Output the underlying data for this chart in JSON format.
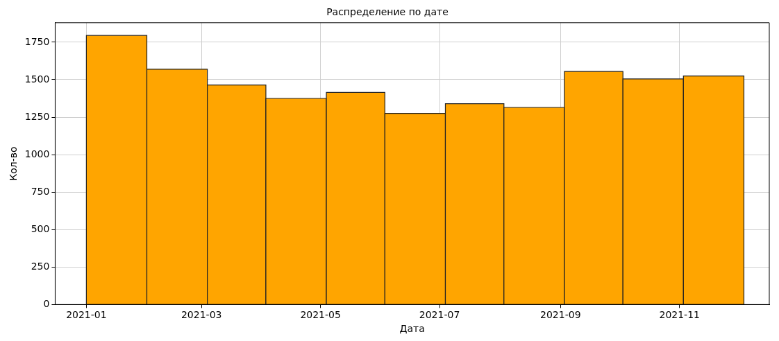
{
  "chart_data": {
    "type": "histogram",
    "title": "Распределение по дате",
    "xlabel": "Дата",
    "ylabel": "Кол-во",
    "bins": [
      "2021-01-01",
      "2021-02-01",
      "2021-03-04",
      "2021-04-03",
      "2021-05-04",
      "2021-06-03",
      "2021-07-04",
      "2021-08-03",
      "2021-09-03",
      "2021-10-03",
      "2021-11-03",
      "2021-12-04"
    ],
    "values": [
      1795,
      1570,
      1465,
      1375,
      1415,
      1275,
      1340,
      1315,
      1555,
      1505,
      1525
    ],
    "color": "#ffa500",
    "xlim": [
      "2020-12-16",
      "2021-12-17"
    ],
    "xticks": [
      {
        "value": "2021-01-01",
        "label": "2021-01"
      },
      {
        "value": "2021-03-01",
        "label": "2021-03"
      },
      {
        "value": "2021-05-01",
        "label": "2021-05"
      },
      {
        "value": "2021-07-01",
        "label": "2021-07"
      },
      {
        "value": "2021-09-01",
        "label": "2021-09"
      },
      {
        "value": "2021-11-01",
        "label": "2021-11"
      }
    ],
    "ylim": [
      0,
      1880
    ],
    "yticks": [
      0,
      250,
      500,
      750,
      1000,
      1250,
      1500,
      1750
    ],
    "grid": true,
    "legend": false
  }
}
